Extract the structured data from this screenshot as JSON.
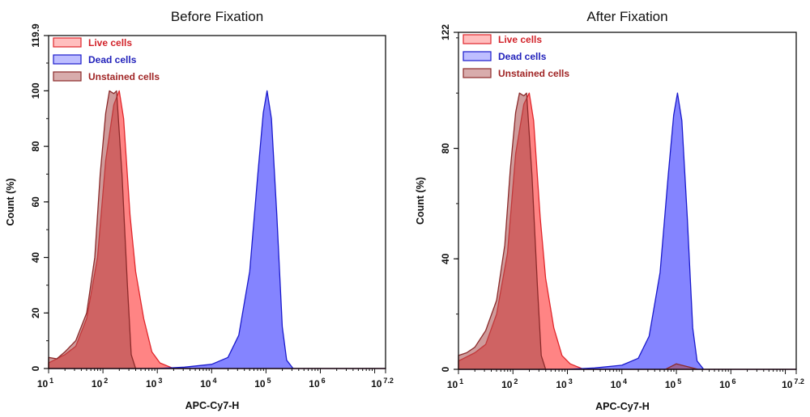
{
  "chart_data": [
    {
      "type": "area",
      "title": "Before Fixation",
      "xlabel": "APC-Cy7-H",
      "ylabel": "Count  (%)",
      "xscale": "log",
      "xlim_log10": [
        1,
        7.2
      ],
      "x_tick_labels": [
        [
          "10",
          "1"
        ],
        [
          "10",
          "2"
        ],
        [
          "10",
          "3"
        ],
        [
          "10",
          "4"
        ],
        [
          "10",
          "5"
        ],
        [
          "10",
          "6"
        ],
        [
          "10",
          "7.2"
        ]
      ],
      "ylim": [
        0,
        119.9
      ],
      "y_ticks": [
        0,
        20,
        40,
        60,
        80,
        100,
        119.9
      ],
      "grid": false,
      "legend_position": "top-left",
      "series": [
        {
          "name": "Live cells",
          "color": "#e0262b",
          "fill": "#ff6f6f",
          "x_log10": [
            1.0,
            1.3,
            1.5,
            1.7,
            1.9,
            2.05,
            2.2,
            2.3,
            2.38,
            2.5,
            2.6,
            2.75,
            2.9,
            3.05,
            3.3,
            7.2
          ],
          "y": [
            2,
            5,
            8,
            18,
            40,
            75,
            95,
            100,
            90,
            55,
            35,
            18,
            6,
            2,
            0,
            0
          ]
        },
        {
          "name": "Dead cells",
          "color": "#1a1acc",
          "fill": "#6f6fff",
          "x_log10": [
            1.0,
            3.0,
            3.5,
            4.0,
            4.3,
            4.5,
            4.7,
            4.85,
            4.95,
            5.02,
            5.1,
            5.2,
            5.3,
            5.38,
            5.5,
            7.2
          ],
          "y": [
            0,
            0,
            0.5,
            1.5,
            4,
            12,
            35,
            70,
            92,
            100,
            90,
            55,
            15,
            3,
            0,
            0
          ]
        },
        {
          "name": "Unstained cells",
          "color": "#8b2a2a",
          "fill": "#a84848",
          "x_log10": [
            1.0,
            1.15,
            1.3,
            1.5,
            1.7,
            1.85,
            1.95,
            2.05,
            2.12,
            2.2,
            2.25,
            2.35,
            2.45,
            2.52,
            2.6,
            7.2
          ],
          "y": [
            4,
            3.5,
            6,
            10,
            20,
            40,
            70,
            92,
            100,
            99,
            100,
            70,
            30,
            5,
            0,
            0
          ]
        }
      ]
    },
    {
      "type": "area",
      "title": "After Fixation",
      "xlabel": "APC-Cy7-H",
      "ylabel": "Count  (%)",
      "xscale": "log",
      "xlim_log10": [
        1,
        7.2
      ],
      "x_tick_labels": [
        [
          "10",
          "1"
        ],
        [
          "10",
          "2"
        ],
        [
          "10",
          "3"
        ],
        [
          "10",
          "4"
        ],
        [
          "10",
          "5"
        ],
        [
          "10",
          "6"
        ],
        [
          "10",
          "7.2"
        ]
      ],
      "ylim": [
        0,
        122
      ],
      "y_ticks": [
        0,
        40,
        80,
        122
      ],
      "grid": false,
      "legend_position": "top-left",
      "series": [
        {
          "name": "Live cells",
          "color": "#e0262b",
          "fill": "#ff6f6f",
          "x_log10": [
            1.0,
            1.3,
            1.5,
            1.7,
            1.9,
            2.05,
            2.2,
            2.3,
            2.38,
            2.5,
            2.6,
            2.75,
            2.9,
            3.05,
            3.3,
            7.2
          ],
          "y": [
            3,
            6,
            9,
            20,
            42,
            78,
            96,
            100,
            90,
            55,
            33,
            15,
            5,
            2,
            0,
            0
          ]
        },
        {
          "name": "Dead cells",
          "color": "#1a1acc",
          "fill": "#6f6fff",
          "x_log10": [
            1.0,
            3.0,
            3.5,
            4.0,
            4.3,
            4.5,
            4.7,
            4.85,
            4.95,
            5.02,
            5.1,
            5.2,
            5.3,
            5.38,
            5.5,
            7.2
          ],
          "y": [
            0,
            0,
            0.5,
            1.5,
            4,
            12,
            35,
            70,
            92,
            100,
            90,
            55,
            15,
            3,
            0,
            0
          ]
        },
        {
          "name": "Unstained cells",
          "color": "#8b2a2a",
          "fill": "#a84848",
          "x_log10": [
            1.0,
            1.15,
            1.3,
            1.5,
            1.7,
            1.85,
            1.95,
            2.05,
            2.12,
            2.2,
            2.25,
            2.35,
            2.45,
            2.52,
            2.6,
            4.8,
            5.0,
            5.2,
            5.4,
            7.2
          ],
          "y": [
            5,
            6,
            8,
            14,
            25,
            45,
            72,
            93,
            100,
            99,
            100,
            70,
            30,
            5,
            0,
            0,
            2,
            1,
            0,
            0
          ]
        }
      ]
    }
  ]
}
